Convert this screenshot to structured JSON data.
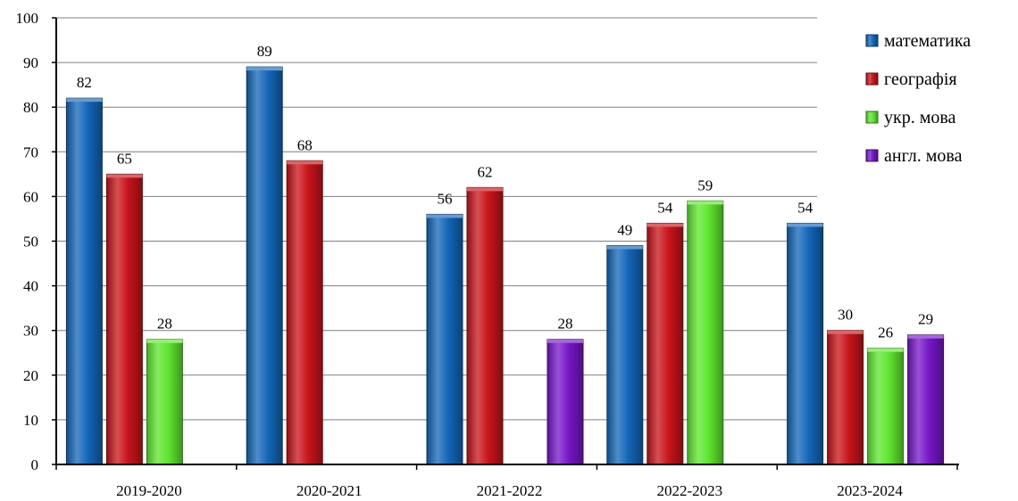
{
  "chart_data": {
    "type": "bar",
    "categories": [
      "2019-2020",
      "2020-2021",
      "2021-2022",
      "2022-2023",
      "2023-2024"
    ],
    "series": [
      {
        "name": "математика",
        "color": "#1366b8",
        "values": [
          82,
          89,
          56,
          49,
          54
        ]
      },
      {
        "name": "географія",
        "color": "#c8141a",
        "values": [
          65,
          68,
          62,
          54,
          30
        ]
      },
      {
        "name": "укр. мова",
        "color": "#5ee62e",
        "values": [
          28,
          null,
          null,
          59,
          26
        ]
      },
      {
        "name": "англ. мова",
        "color": "#7616c8",
        "values": [
          null,
          null,
          28,
          null,
          29
        ]
      }
    ],
    "ylim": [
      0,
      100
    ],
    "yticks": [
      "0",
      "10",
      "20",
      "30",
      "40",
      "50",
      "60",
      "70",
      "80",
      "90",
      "100"
    ],
    "grid": true,
    "legend": "top-right"
  }
}
